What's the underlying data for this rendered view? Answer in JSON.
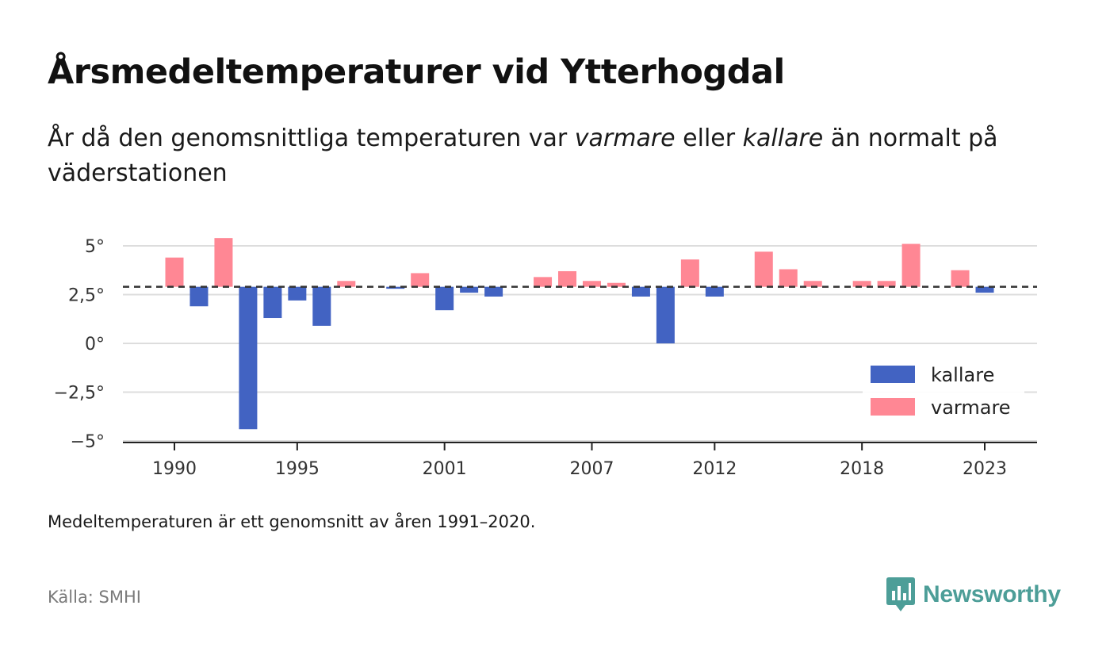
{
  "header": {
    "title": "Årsmedeltemperaturer vid Ytterhogdal",
    "subtitle_parts": [
      "År då den genomsnittliga temperaturen var ",
      "varmare",
      " eller ",
      "kallare",
      " än normalt på väderstationen"
    ]
  },
  "footer": {
    "note": "Medeltemperaturen är ett genomsnitt av åren 1991–2020.",
    "source": "Källa: SMHI",
    "brand": "Newsworthy"
  },
  "colors": {
    "kallare": "#4263c2",
    "varmare": "#ff8794",
    "brand": "#4d9e98"
  },
  "chart_data": {
    "type": "bar",
    "title": "Årsmedeltemperaturer vid Ytterhogdal",
    "baseline": 2.9,
    "baseline_style": "dashed",
    "ylim": [
      -5,
      5.4
    ],
    "yticks": [
      5,
      2.5,
      0,
      -2.5,
      -5
    ],
    "ytick_labels": [
      "5°",
      "2,5°",
      "0°",
      "−2,5°",
      "−5°"
    ],
    "xticks": [
      1990,
      1995,
      2001,
      2007,
      2012,
      2018,
      2023
    ],
    "xtick_labels": [
      "1990",
      "1995",
      "2001",
      "2007",
      "2012",
      "2018",
      "2023"
    ],
    "grid": "horizontal",
    "legend_position": "bottom-right",
    "series": [
      {
        "name": "kallare",
        "color": "#4263c2"
      },
      {
        "name": "varmare",
        "color": "#ff8794"
      }
    ],
    "years": [
      1990,
      1991,
      1992,
      1993,
      1994,
      1995,
      1996,
      1997,
      1998,
      1999,
      2000,
      2001,
      2002,
      2003,
      2004,
      2005,
      2006,
      2007,
      2008,
      2009,
      2010,
      2011,
      2012,
      2013,
      2014,
      2015,
      2016,
      2017,
      2018,
      2019,
      2020,
      2021,
      2022,
      2023
    ],
    "values": [
      4.4,
      1.9,
      5.4,
      -4.4,
      1.3,
      2.2,
      0.9,
      3.2,
      null,
      2.8,
      3.6,
      1.7,
      2.6,
      2.4,
      null,
      3.4,
      3.7,
      3.2,
      3.1,
      2.4,
      0.0,
      4.3,
      2.4,
      null,
      4.7,
      3.8,
      3.2,
      null,
      3.2,
      3.2,
      5.1,
      null,
      3.75,
      2.6
    ]
  }
}
